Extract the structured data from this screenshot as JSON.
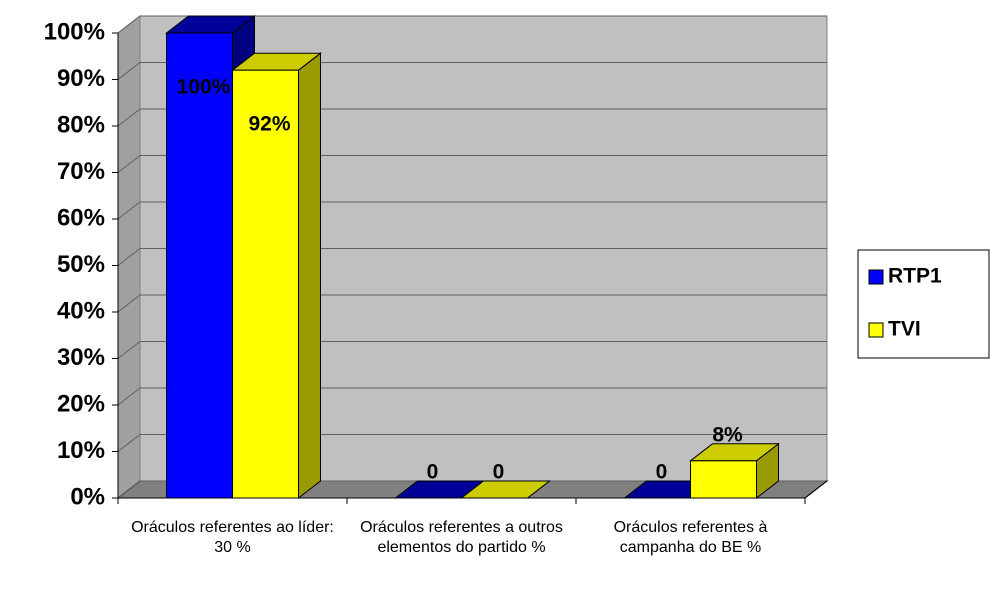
{
  "chart_data": {
    "type": "bar3d",
    "categories": [
      "Oráculos referentes ao líder: 30 %",
      "Oráculos referentes a outros elementos do partido %",
      "Oráculos referentes à campanha do BE %"
    ],
    "series": [
      {
        "name": "RTP1",
        "color": "#0000ff",
        "values": [
          100,
          0,
          0
        ],
        "value_labels": [
          "100%",
          "0",
          "0"
        ]
      },
      {
        "name": "TVI",
        "color": "#ffff00",
        "values": [
          92,
          0,
          8
        ],
        "value_labels": [
          "92%",
          "0",
          "8%"
        ]
      }
    ],
    "ylim": [
      0,
      100
    ],
    "yticks": [
      {
        "value": 0,
        "label": "0%"
      },
      {
        "value": 10,
        "label": "10%"
      },
      {
        "value": 20,
        "label": "20%"
      },
      {
        "value": 30,
        "label": "30%"
      },
      {
        "value": 40,
        "label": "40%"
      },
      {
        "value": 50,
        "label": "50%"
      },
      {
        "value": 60,
        "label": "60%"
      },
      {
        "value": 70,
        "label": "70%"
      },
      {
        "value": 80,
        "label": "80%"
      },
      {
        "value": 90,
        "label": "90%"
      },
      {
        "value": 100,
        "label": "100%"
      }
    ],
    "grid": true,
    "legend": "right"
  }
}
